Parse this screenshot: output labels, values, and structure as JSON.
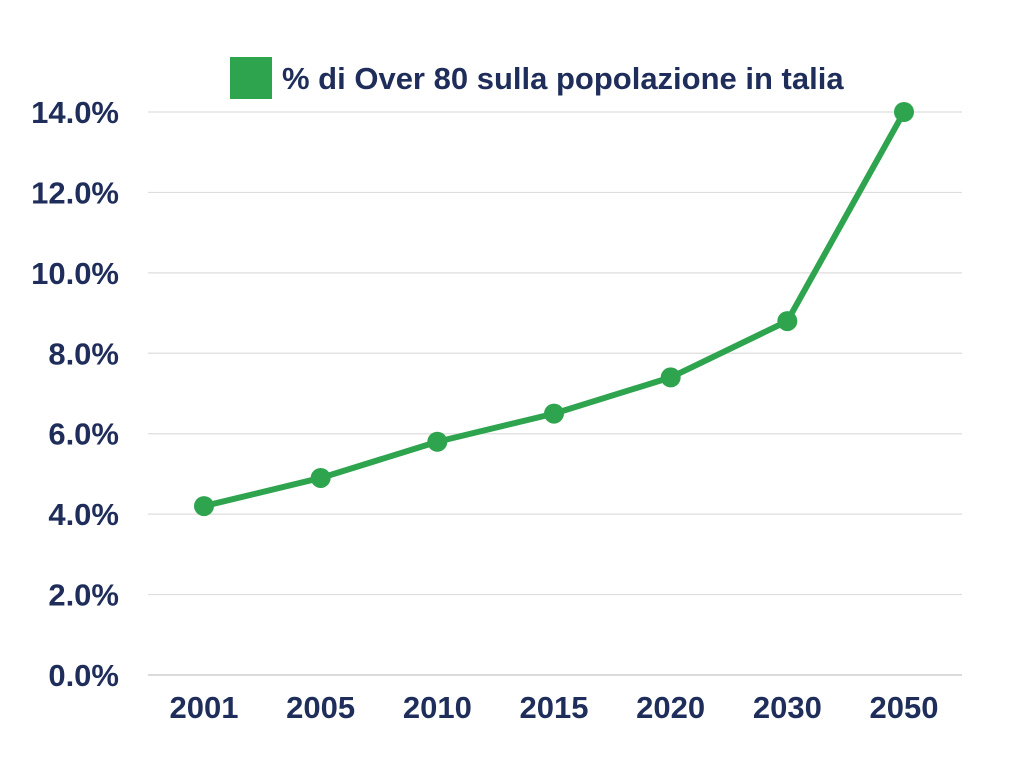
{
  "chart_data": {
    "type": "line",
    "categories": [
      "2001",
      "2005",
      "2010",
      "2015",
      "2020",
      "2030",
      "2050"
    ],
    "series": [
      {
        "name": "% di Over 80 sulla popolazione in talia",
        "values": [
          4.2,
          4.9,
          5.8,
          6.5,
          7.4,
          8.8,
          14.0
        ]
      }
    ],
    "ylim": [
      0,
      14
    ],
    "yticks": [
      "0.0%",
      "2.0%",
      "4.0%",
      "6.0%",
      "8.0%",
      "10.0%",
      "12.0%",
      "14.0%"
    ],
    "ytick_values": [
      0,
      2,
      4,
      6,
      8,
      10,
      12,
      14
    ],
    "grid": true,
    "legend_position": "top",
    "colors": {
      "series": "#2ea44f",
      "text": "#1f2d5a",
      "grid": "#dedede"
    }
  }
}
